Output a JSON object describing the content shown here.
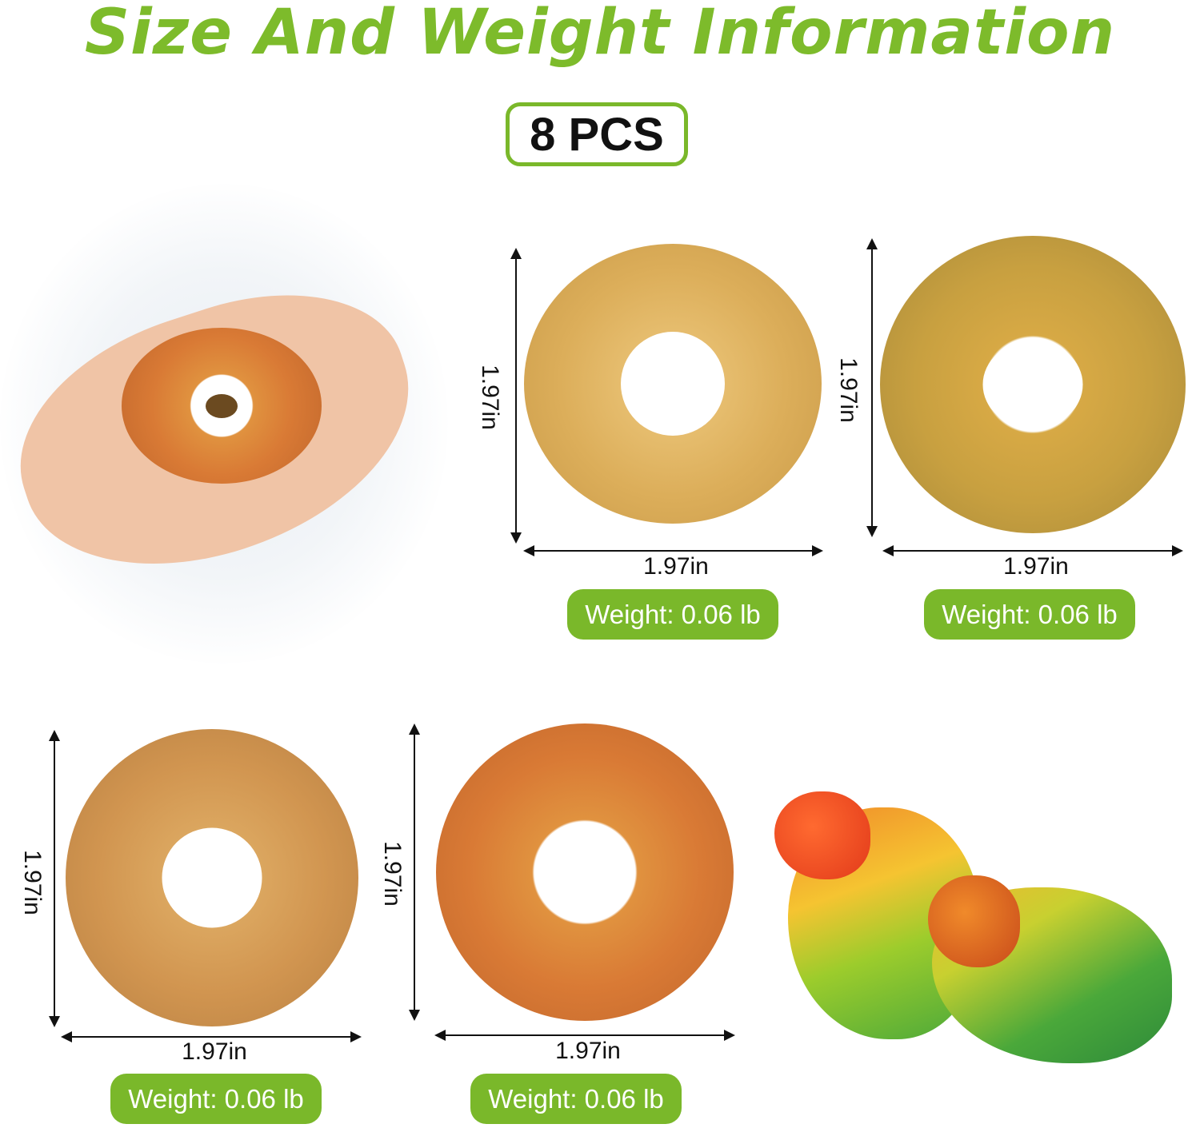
{
  "title": "Size And Weight Information",
  "count_label": "8 PCS",
  "colors": {
    "accent": "#7ab82a",
    "title": "#7dbb2b"
  },
  "items": [
    {
      "height": "1.97in",
      "width": "1.97in",
      "weight": "Weight: 0.06 lb"
    },
    {
      "height": "1.97in",
      "width": "1.97in",
      "weight": "Weight: 0.06 lb"
    },
    {
      "height": "1.97in",
      "width": "1.97in",
      "weight": "Weight: 0.06 lb"
    },
    {
      "height": "1.97in",
      "width": "1.97in",
      "weight": "Weight: 0.06 lb"
    }
  ]
}
